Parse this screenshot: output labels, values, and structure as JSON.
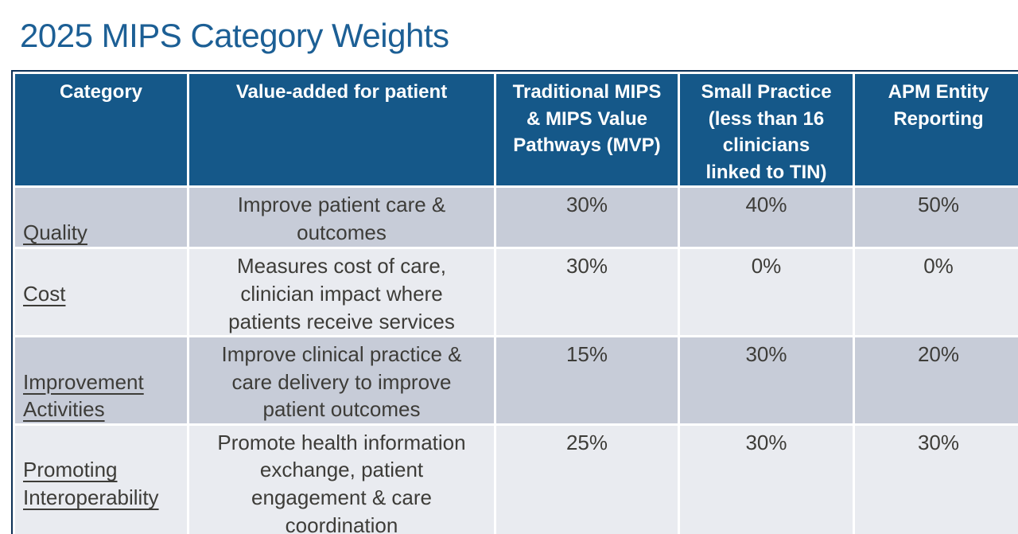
{
  "title": "2025 MIPS Category Weights",
  "table": {
    "headers": {
      "category": "Category",
      "value_added": "Value-added for patient",
      "traditional": [
        "Traditional MIPS",
        "& MIPS Value",
        "Pathways (MVP)"
      ],
      "small_practice": [
        "Small Practice",
        "(less than 16",
        "clinicians",
        "linked to TIN)"
      ],
      "apm": [
        "APM Entity",
        "Reporting"
      ]
    },
    "rows": [
      {
        "category": "Quality",
        "value_added": [
          "Improve patient care &",
          "outcomes"
        ],
        "traditional": "30%",
        "small_practice": "40%",
        "apm": "50%"
      },
      {
        "category": "Cost",
        "value_added": [
          "Measures cost of care,",
          "clinician impact where",
          "patients receive services"
        ],
        "traditional": "30%",
        "small_practice": "0%",
        "apm": "0%"
      },
      {
        "category": [
          "Improvement",
          "Activities"
        ],
        "value_added": [
          "Improve clinical practice &",
          "care delivery to improve",
          "patient outcomes"
        ],
        "traditional": "15%",
        "small_practice": "30%",
        "apm": "20%"
      },
      {
        "category": [
          "Promoting",
          "Interoperability"
        ],
        "value_added": [
          "Promote health information",
          "exchange, patient",
          "engagement & care",
          "coordination"
        ],
        "traditional": "25%",
        "small_practice": "30%",
        "apm": "30%"
      }
    ]
  },
  "colors": {
    "title_text": "#1c5f95",
    "header_bg": "#155889",
    "header_text": "#ffffff",
    "row_dark_bg": "#c7ccd8",
    "row_light_bg": "#e9ebf0",
    "body_text": "#3d3c38",
    "outer_border": "#0d3156",
    "cell_gap": "#ffffff"
  }
}
